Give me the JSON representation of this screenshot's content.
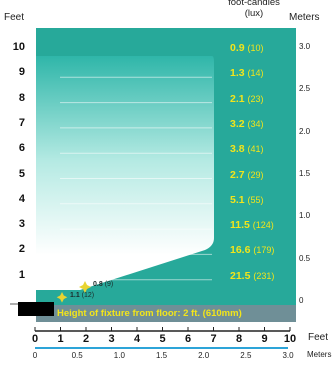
{
  "chart_data": {
    "type": "area",
    "labels": {
      "feet_axis": "Feet",
      "meters_axis": "Meters",
      "fc_header_line1": "foot-candles",
      "fc_header_line2": "(lux)",
      "bottom_feet_unit": "Feet",
      "bottom_meters_unit": "Meters",
      "caption": "Height of fixture from floor: 2 ft. (610mm)"
    },
    "y_feet_ticks": [
      "10",
      "9",
      "8",
      "7",
      "6",
      "5",
      "4",
      "3",
      "2",
      "1"
    ],
    "y_meters_ticks": [
      "3.0",
      "2.5",
      "2.0",
      "1.5",
      "1.0",
      "0.5",
      "0"
    ],
    "x_feet_ticks": [
      "0",
      "1",
      "2",
      "3",
      "4",
      "5",
      "6",
      "7",
      "8",
      "9",
      "10"
    ],
    "x_meters_ticks": [
      "0",
      "0.5",
      "1.0",
      "1.5",
      "2.0",
      "2.5",
      "3.0"
    ],
    "readings": [
      {
        "distance_ft": 10,
        "fc": "0.9",
        "lux": "(10)"
      },
      {
        "distance_ft": 9,
        "fc": "1.3",
        "lux": "(14)"
      },
      {
        "distance_ft": 8,
        "fc": "2.1",
        "lux": "(23)"
      },
      {
        "distance_ft": 7,
        "fc": "3.2",
        "lux": "(34)"
      },
      {
        "distance_ft": 6,
        "fc": "3.8",
        "lux": "(41)"
      },
      {
        "distance_ft": 5,
        "fc": "2.7",
        "lux": "(29)"
      },
      {
        "distance_ft": 4,
        "fc": "5.1",
        "lux": "(55)"
      },
      {
        "distance_ft": 3,
        "fc": "11.5",
        "lux": "(124)"
      },
      {
        "distance_ft": 2,
        "fc": "16.6",
        "lux": "(179)"
      },
      {
        "distance_ft": 1,
        "fc": "21.5",
        "lux": "(231)"
      }
    ],
    "inner_readings": [
      {
        "fc": "0.8",
        "lux": "(9)"
      },
      {
        "fc": "1.1",
        "lux": "(12)"
      }
    ],
    "colors": {
      "background": "#27a99a",
      "beam": "#ffffff",
      "caption_bar": "#6f8f97",
      "reading_text": "#f2e51b",
      "axis_line": "#2da4d8"
    }
  }
}
